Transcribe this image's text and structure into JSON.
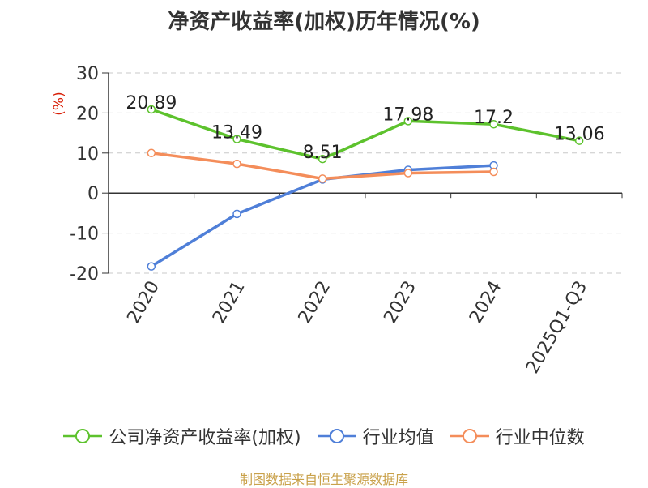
{
  "page": {
    "title": "净资产收益率(加权)历年情况(%)",
    "source": "制图数据来自恒生聚源数据库"
  },
  "chart_data": {
    "type": "line",
    "title": "净资产收益率(加权)历年情况(%)",
    "ylabel": "(%)",
    "xlabel": "",
    "categories": [
      "2020",
      "2021",
      "2022",
      "2023",
      "2024",
      "2025Q1-Q3"
    ],
    "ylim": [
      -20,
      30
    ],
    "yticks": [
      30,
      20,
      10,
      0,
      -10,
      -20
    ],
    "ytick_labels": [
      "30",
      "20",
      "10",
      "0",
      "-10",
      "-20"
    ],
    "grid": true,
    "legend_position": "bottom",
    "series": [
      {
        "name": "公司净资产收益率(加权)",
        "color": "#5dc22d",
        "values": [
          20.89,
          13.49,
          8.51,
          17.98,
          17.2,
          13.06
        ],
        "labels": [
          "20.89",
          "13.49",
          "8.51",
          "17.98",
          "17.2",
          "13.06"
        ]
      },
      {
        "name": "行业均值",
        "color": "#4f7fd8",
        "values": [
          -18.3,
          -5.2,
          3.4,
          5.8,
          6.9,
          null
        ]
      },
      {
        "name": "行业中位数",
        "color": "#f48d5a",
        "values": [
          10.0,
          7.3,
          3.6,
          5.0,
          5.3,
          null
        ]
      }
    ]
  }
}
